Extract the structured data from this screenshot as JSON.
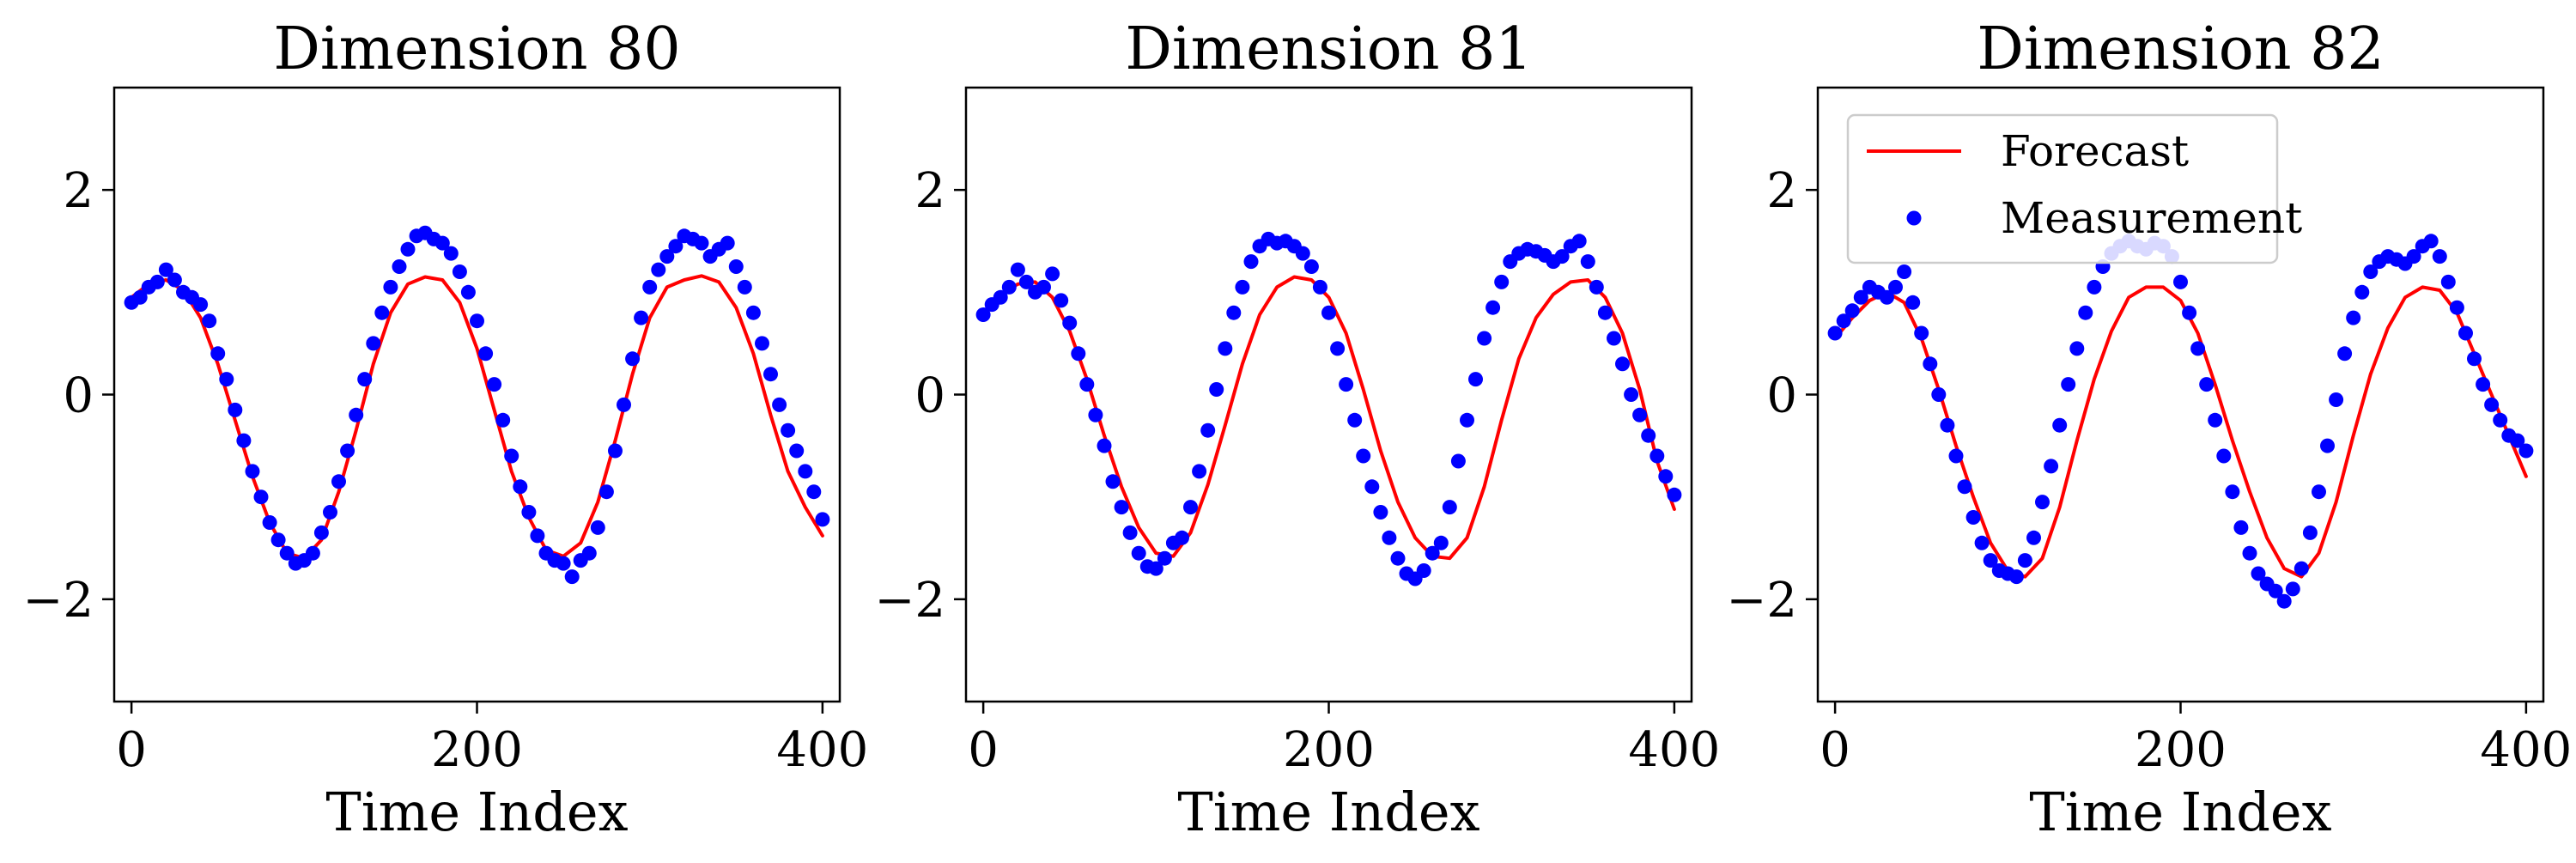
{
  "chart_data": [
    {
      "type": "line",
      "title": "Dimension 80",
      "xlabel": "Time Index",
      "ylabel": "",
      "xlim": [
        -10,
        410
      ],
      "ylim": [
        -3,
        3
      ],
      "xticks": [
        0,
        200,
        400
      ],
      "yticks": [
        -2,
        0,
        2
      ],
      "xtick_labels": [
        "0",
        "200",
        "400"
      ],
      "ytick_labels": [
        "−2",
        "0",
        "2"
      ],
      "legend": null,
      "series": [
        {
          "name": "Forecast",
          "style": "line",
          "color": "#ff0000",
          "x": [
            0,
            10,
            20,
            30,
            40,
            50,
            60,
            70,
            80,
            90,
            100,
            110,
            120,
            130,
            140,
            150,
            160,
            170,
            180,
            190,
            200,
            210,
            220,
            230,
            240,
            250,
            260,
            270,
            280,
            290,
            300,
            310,
            320,
            330,
            340,
            350,
            360,
            370,
            380,
            390,
            400
          ],
          "y": [
            0.95,
            1.08,
            1.12,
            1.02,
            0.75,
            0.3,
            -0.25,
            -0.8,
            -1.25,
            -1.55,
            -1.6,
            -1.42,
            -0.95,
            -0.35,
            0.3,
            0.8,
            1.08,
            1.15,
            1.12,
            0.9,
            0.45,
            -0.15,
            -0.75,
            -1.2,
            -1.52,
            -1.58,
            -1.45,
            -1.05,
            -0.45,
            0.2,
            0.75,
            1.05,
            1.12,
            1.16,
            1.1,
            0.85,
            0.4,
            -0.2,
            -0.75,
            -1.1,
            -1.38
          ]
        },
        {
          "name": "Measurement",
          "style": "scatter",
          "color": "#0000ff",
          "x": [
            0,
            5,
            10,
            15,
            20,
            25,
            30,
            35,
            40,
            45,
            50,
            55,
            60,
            65,
            70,
            75,
            80,
            85,
            90,
            95,
            100,
            105,
            110,
            115,
            120,
            125,
            130,
            135,
            140,
            145,
            150,
            155,
            160,
            165,
            170,
            175,
            180,
            185,
            190,
            195,
            200,
            205,
            210,
            215,
            220,
            225,
            230,
            235,
            240,
            245,
            250,
            255,
            260,
            265,
            270,
            275,
            280,
            285,
            290,
            295,
            300,
            305,
            310,
            315,
            320,
            325,
            330,
            335,
            340,
            345,
            350,
            355,
            360,
            365,
            370,
            375,
            380,
            385,
            390,
            395,
            400
          ],
          "y": [
            0.9,
            0.95,
            1.05,
            1.1,
            1.22,
            1.12,
            1.0,
            0.95,
            0.88,
            0.72,
            0.4,
            0.15,
            -0.15,
            -0.45,
            -0.75,
            -1.0,
            -1.25,
            -1.42,
            -1.55,
            -1.65,
            -1.62,
            -1.55,
            -1.35,
            -1.15,
            -0.85,
            -0.55,
            -0.2,
            0.15,
            0.5,
            0.8,
            1.05,
            1.25,
            1.42,
            1.55,
            1.58,
            1.52,
            1.48,
            1.38,
            1.2,
            1.0,
            0.72,
            0.4,
            0.1,
            -0.25,
            -0.6,
            -0.9,
            -1.15,
            -1.38,
            -1.55,
            -1.62,
            -1.65,
            -1.78,
            -1.62,
            -1.55,
            -1.3,
            -0.95,
            -0.55,
            -0.1,
            0.35,
            0.75,
            1.05,
            1.22,
            1.35,
            1.45,
            1.55,
            1.52,
            1.48,
            1.35,
            1.42,
            1.48,
            1.25,
            1.05,
            0.8,
            0.5,
            0.2,
            -0.1,
            -0.35,
            -0.55,
            -0.75,
            -0.95,
            -1.22
          ]
        }
      ]
    },
    {
      "type": "line",
      "title": "Dimension 81",
      "xlabel": "Time Index",
      "ylabel": "",
      "xlim": [
        -10,
        410
      ],
      "ylim": [
        -3,
        3
      ],
      "xticks": [
        0,
        200,
        400
      ],
      "yticks": [
        -2,
        0,
        2
      ],
      "xtick_labels": [
        "0",
        "200",
        "400"
      ],
      "ytick_labels": [
        "−2",
        "0",
        "2"
      ],
      "legend": null,
      "series": [
        {
          "name": "Forecast",
          "style": "line",
          "color": "#ff0000",
          "x": [
            0,
            10,
            20,
            30,
            40,
            50,
            60,
            70,
            80,
            90,
            100,
            110,
            120,
            130,
            140,
            150,
            160,
            170,
            180,
            190,
            200,
            210,
            220,
            230,
            240,
            250,
            260,
            270,
            280,
            290,
            300,
            310,
            320,
            330,
            340,
            350,
            360,
            370,
            380,
            390,
            400
          ],
          "y": [
            0.8,
            0.98,
            1.08,
            1.1,
            0.95,
            0.62,
            0.15,
            -0.4,
            -0.9,
            -1.3,
            -1.55,
            -1.58,
            -1.35,
            -0.88,
            -0.3,
            0.3,
            0.78,
            1.05,
            1.15,
            1.12,
            0.95,
            0.6,
            0.05,
            -0.55,
            -1.05,
            -1.4,
            -1.58,
            -1.6,
            -1.4,
            -0.9,
            -0.25,
            0.35,
            0.75,
            0.98,
            1.1,
            1.12,
            0.95,
            0.6,
            0.05,
            -0.65,
            -1.12
          ]
        },
        {
          "name": "Measurement",
          "style": "scatter",
          "color": "#0000ff",
          "x": [
            0,
            5,
            10,
            15,
            20,
            25,
            30,
            35,
            40,
            45,
            50,
            55,
            60,
            65,
            70,
            75,
            80,
            85,
            90,
            95,
            100,
            105,
            110,
            115,
            120,
            125,
            130,
            135,
            140,
            145,
            150,
            155,
            160,
            165,
            170,
            175,
            180,
            185,
            190,
            195,
            200,
            205,
            210,
            215,
            220,
            225,
            230,
            235,
            240,
            245,
            250,
            255,
            260,
            265,
            270,
            275,
            280,
            285,
            290,
            295,
            300,
            305,
            310,
            315,
            320,
            325,
            330,
            335,
            340,
            345,
            350,
            355,
            360,
            365,
            370,
            375,
            380,
            385,
            390,
            395,
            400
          ],
          "y": [
            0.78,
            0.88,
            0.95,
            1.05,
            1.22,
            1.1,
            1.0,
            1.05,
            1.18,
            0.92,
            0.7,
            0.4,
            0.1,
            -0.2,
            -0.5,
            -0.85,
            -1.1,
            -1.35,
            -1.55,
            -1.68,
            -1.7,
            -1.6,
            -1.45,
            -1.4,
            -1.1,
            -0.75,
            -0.35,
            0.05,
            0.45,
            0.8,
            1.05,
            1.3,
            1.45,
            1.52,
            1.48,
            1.5,
            1.45,
            1.38,
            1.25,
            1.05,
            0.8,
            0.45,
            0.1,
            -0.25,
            -0.6,
            -0.9,
            -1.15,
            -1.4,
            -1.6,
            -1.75,
            -1.8,
            -1.72,
            -1.55,
            -1.45,
            -1.1,
            -0.65,
            -0.25,
            0.15,
            0.55,
            0.85,
            1.1,
            1.3,
            1.38,
            1.42,
            1.4,
            1.36,
            1.3,
            1.35,
            1.45,
            1.5,
            1.3,
            1.05,
            0.8,
            0.55,
            0.3,
            0.0,
            -0.2,
            -0.4,
            -0.6,
            -0.8,
            -0.98
          ]
        }
      ]
    },
    {
      "type": "line",
      "title": "Dimension 82",
      "xlabel": "Time Index",
      "ylabel": "",
      "xlim": [
        -10,
        410
      ],
      "ylim": [
        -3,
        3
      ],
      "xticks": [
        0,
        200,
        400
      ],
      "yticks": [
        -2,
        0,
        2
      ],
      "xtick_labels": [
        "0",
        "200",
        "400"
      ],
      "ytick_labels": [
        "−2",
        "0",
        "2"
      ],
      "legend": {
        "position": "upper-left",
        "entries": [
          {
            "label": "Forecast",
            "kind": "line",
            "color": "#ff0000"
          },
          {
            "label": "Measurement",
            "kind": "marker",
            "color": "#0000ff"
          }
        ]
      },
      "series": [
        {
          "name": "Forecast",
          "style": "line",
          "color": "#ff0000",
          "x": [
            0,
            10,
            20,
            30,
            40,
            50,
            60,
            70,
            80,
            90,
            100,
            110,
            120,
            130,
            140,
            150,
            160,
            170,
            180,
            190,
            200,
            210,
            220,
            230,
            240,
            250,
            260,
            270,
            280,
            290,
            300,
            310,
            320,
            330,
            340,
            350,
            360,
            370,
            380,
            390,
            400
          ],
          "y": [
            0.55,
            0.75,
            0.92,
            1.0,
            0.9,
            0.55,
            0.05,
            -0.5,
            -1.0,
            -1.45,
            -1.72,
            -1.78,
            -1.6,
            -1.1,
            -0.45,
            0.15,
            0.62,
            0.95,
            1.05,
            1.05,
            0.92,
            0.6,
            0.1,
            -0.45,
            -0.95,
            -1.4,
            -1.7,
            -1.78,
            -1.55,
            -1.05,
            -0.4,
            0.2,
            0.65,
            0.95,
            1.05,
            1.02,
            0.8,
            0.4,
            0.0,
            -0.4,
            -0.8
          ]
        },
        {
          "name": "Measurement",
          "style": "scatter",
          "color": "#0000ff",
          "x": [
            0,
            5,
            10,
            15,
            20,
            25,
            30,
            35,
            40,
            45,
            50,
            55,
            60,
            65,
            70,
            75,
            80,
            85,
            90,
            95,
            100,
            105,
            110,
            115,
            120,
            125,
            130,
            135,
            140,
            145,
            150,
            155,
            160,
            165,
            170,
            175,
            180,
            185,
            190,
            195,
            200,
            205,
            210,
            215,
            220,
            225,
            230,
            235,
            240,
            245,
            250,
            255,
            260,
            265,
            270,
            275,
            280,
            285,
            290,
            295,
            300,
            305,
            310,
            315,
            320,
            325,
            330,
            335,
            340,
            345,
            350,
            355,
            360,
            365,
            370,
            375,
            380,
            385,
            390,
            395,
            400
          ],
          "y": [
            0.6,
            0.72,
            0.82,
            0.95,
            1.05,
            1.0,
            0.95,
            1.05,
            1.2,
            0.9,
            0.6,
            0.3,
            0.0,
            -0.3,
            -0.6,
            -0.9,
            -1.2,
            -1.45,
            -1.62,
            -1.72,
            -1.75,
            -1.78,
            -1.62,
            -1.4,
            -1.05,
            -0.7,
            -0.3,
            0.1,
            0.45,
            0.8,
            1.05,
            1.25,
            1.38,
            1.45,
            1.5,
            1.45,
            1.42,
            1.48,
            1.45,
            1.35,
            1.1,
            0.8,
            0.45,
            0.1,
            -0.25,
            -0.6,
            -0.95,
            -1.3,
            -1.55,
            -1.75,
            -1.85,
            -1.92,
            -2.02,
            -1.9,
            -1.7,
            -1.35,
            -0.95,
            -0.5,
            -0.05,
            0.4,
            0.75,
            1.0,
            1.2,
            1.3,
            1.35,
            1.32,
            1.28,
            1.35,
            1.45,
            1.5,
            1.35,
            1.1,
            0.85,
            0.6,
            0.35,
            0.1,
            -0.1,
            -0.25,
            -0.4,
            -0.45,
            -0.55
          ]
        }
      ]
    }
  ]
}
